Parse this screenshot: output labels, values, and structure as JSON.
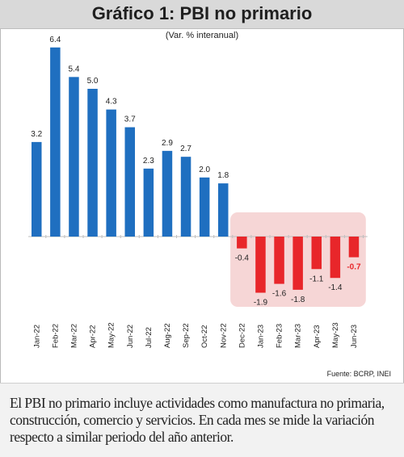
{
  "header": {
    "title": "Gráfico 1: PBI no primario",
    "subtitle": "(Var. % interanual)"
  },
  "colors": {
    "positive_bar": "#1f6fc0",
    "negative_bar": "#e8262a",
    "negative_panel": "#f6d6d6",
    "header_bg": "#d9d9d9"
  },
  "chart_data": {
    "type": "bar",
    "title": "Gráfico 1: PBI no primario",
    "subtitle": "(Var. % interanual)",
    "categories": [
      "Jan-22",
      "Feb-22",
      "Mar-22",
      "Apr-22",
      "May-22",
      "Jun-22",
      "Jul-22",
      "Aug-22",
      "Sep-22",
      "Oct-22",
      "Nov-22",
      "Dec-22",
      "Jan-23",
      "Feb-23",
      "Mar-23",
      "Apr-23",
      "May-23",
      "Jun-23"
    ],
    "values": [
      3.2,
      6.4,
      5.4,
      5.0,
      4.3,
      3.7,
      2.3,
      2.9,
      2.7,
      2.0,
      1.8,
      -0.4,
      -1.9,
      -1.6,
      -1.8,
      -1.1,
      -1.4,
      -0.7
    ],
    "value_labels": [
      "3.2",
      "6.4",
      "5.4",
      "5.0",
      "4.3",
      "3.7",
      "2.3",
      "2.9",
      "2.7",
      "2.0",
      "1.8",
      "-0.4",
      "-1.9",
      "-1.6",
      "-1.8",
      "-1.1",
      "-1.4",
      "-0.7"
    ],
    "highlighted_label_index": 17,
    "highlight_region": "Dec-22 to Jun-23",
    "xlabel": "",
    "ylabel": "",
    "ylim": [
      -2.4,
      7.2
    ],
    "grid": false,
    "legend": "none"
  },
  "footer": {
    "source": "Fuente: BCRP, INEI",
    "note": "El PBI no primario incluye actividades como manufactura no primaria, construcción, comercio y servicios. En cada mes se mide la variación respecto a similar periodo del año anterior."
  }
}
